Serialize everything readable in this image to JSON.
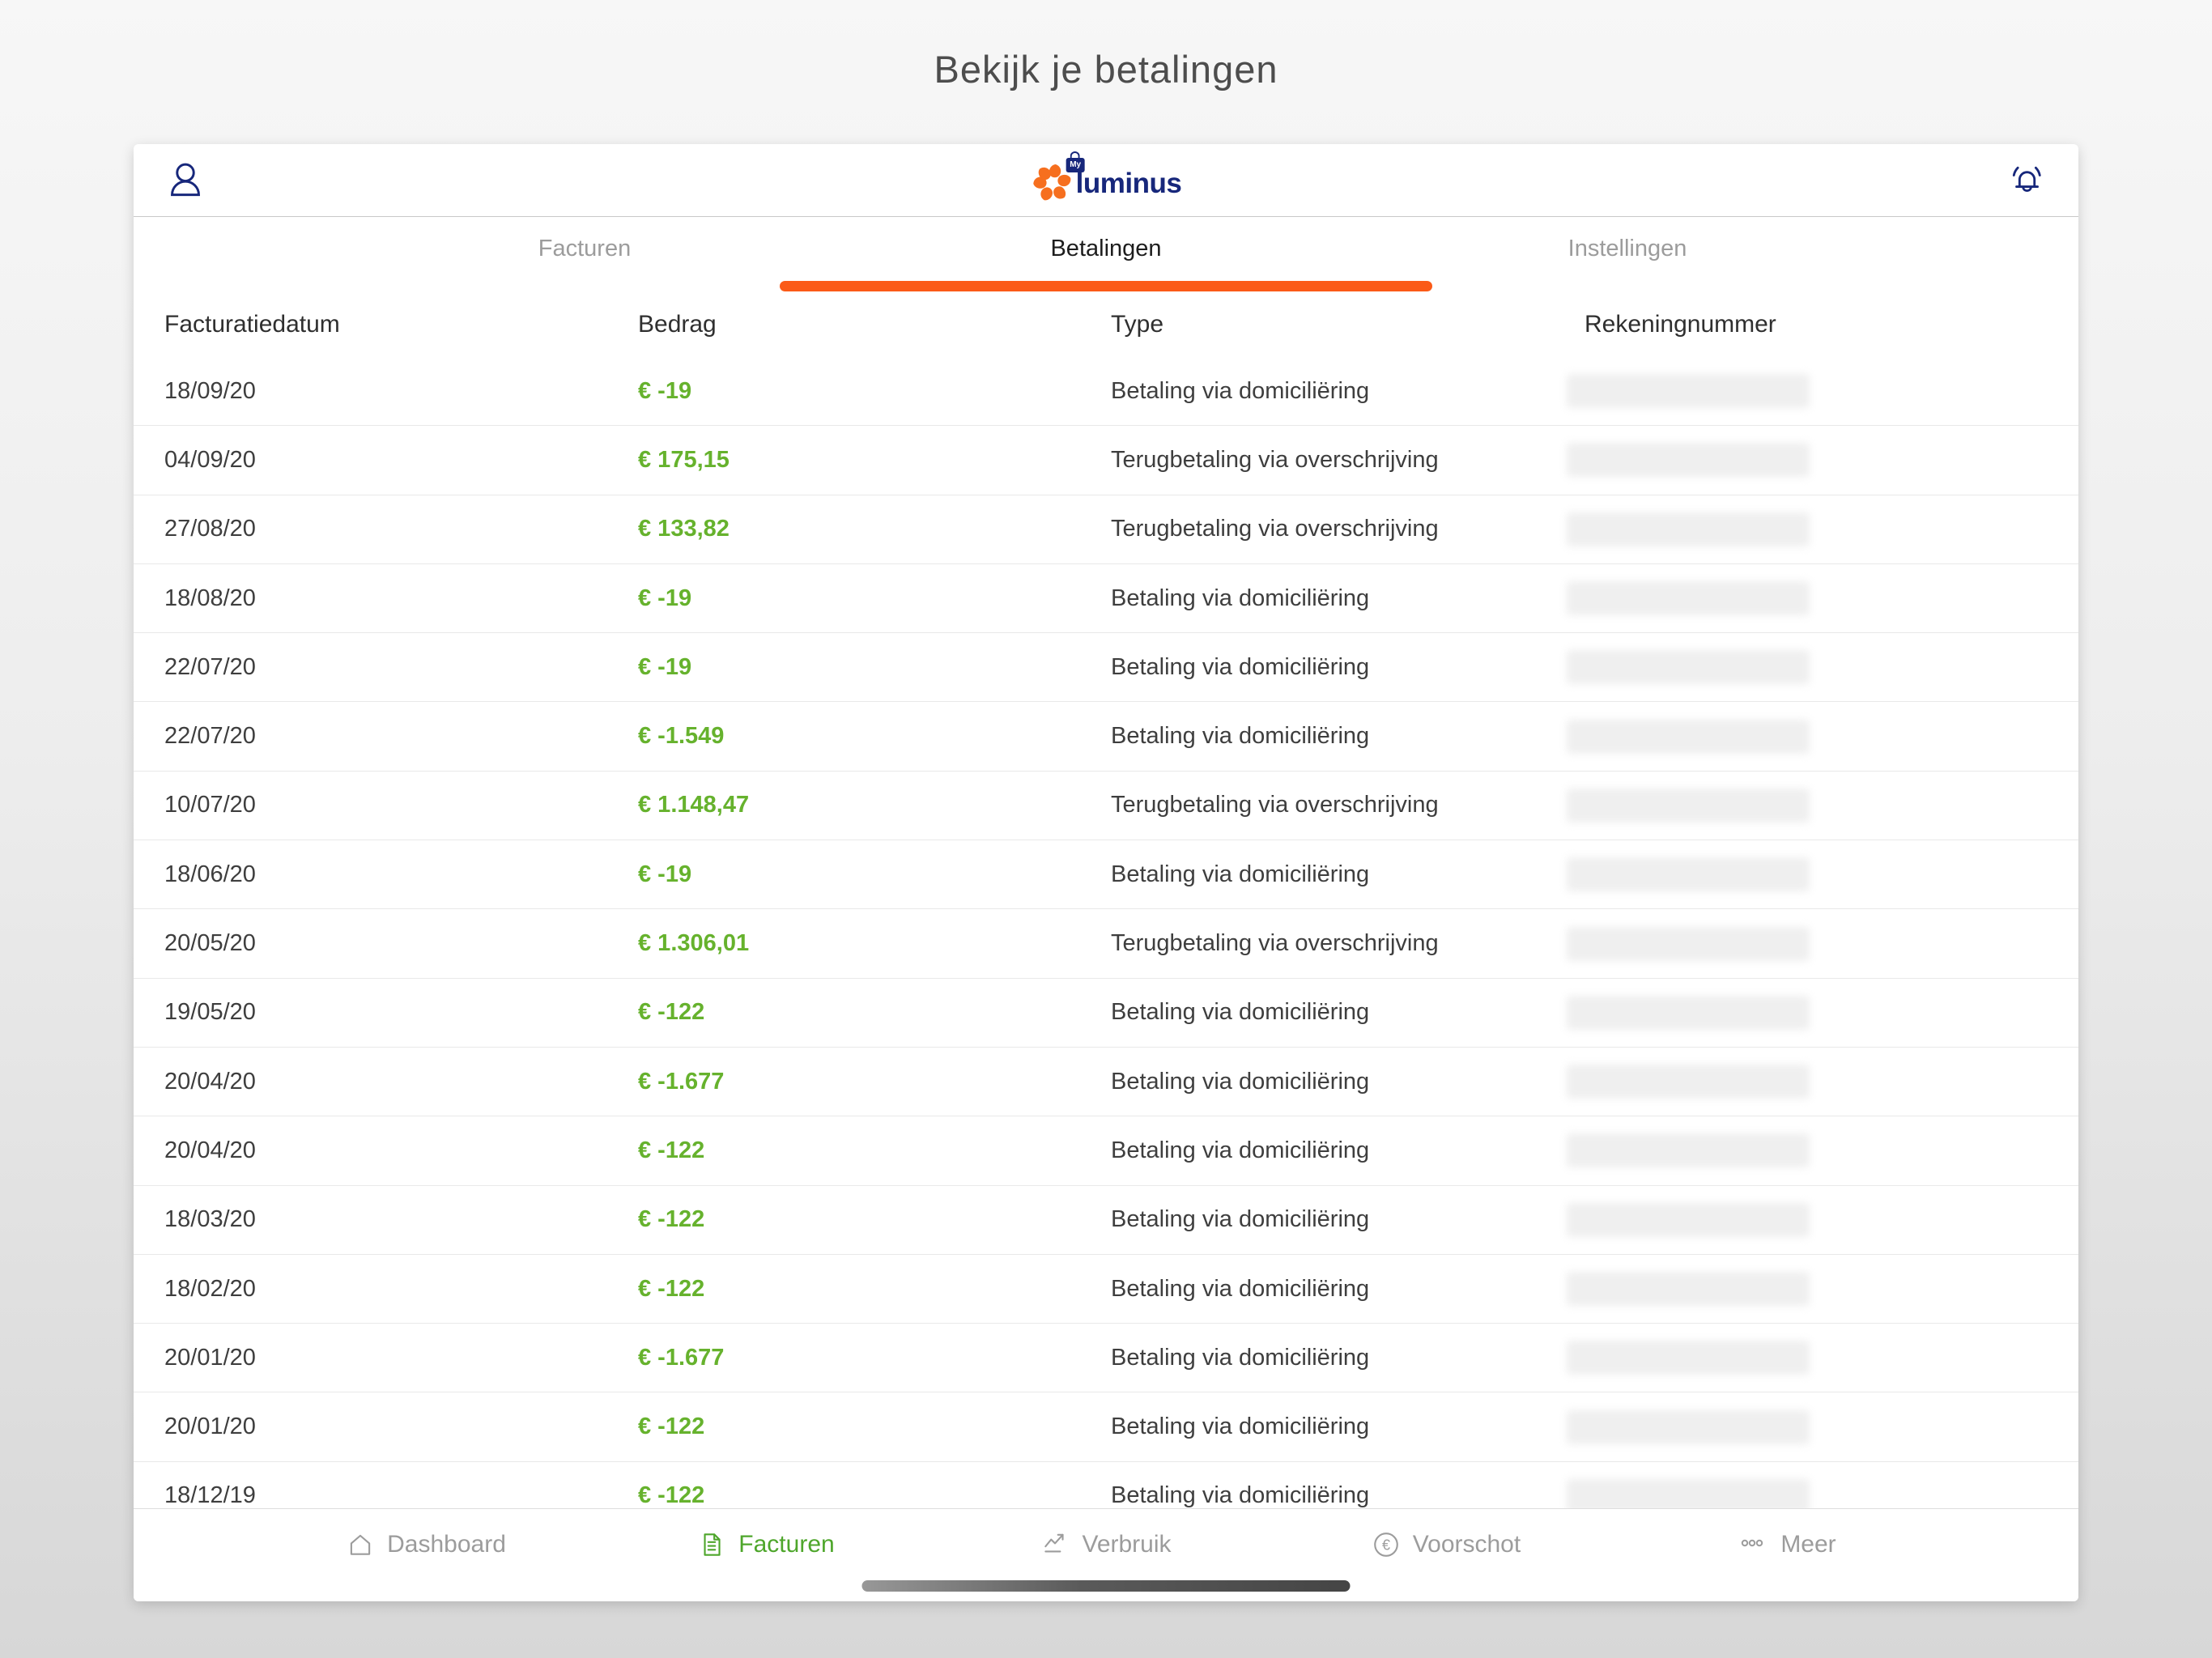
{
  "page": {
    "title": "Bekijk je betalingen"
  },
  "header": {
    "logo_text": "luminus",
    "logo_badge": "My"
  },
  "tabs": [
    {
      "label": "Facturen",
      "active": false
    },
    {
      "label": "Betalingen",
      "active": true
    },
    {
      "label": "Instellingen",
      "active": false
    }
  ],
  "table": {
    "columns": [
      "Facturatiedatum",
      "Bedrag",
      "Type",
      "Rekeningnummer"
    ],
    "rows": [
      {
        "date": "18/09/20",
        "amount": "€ -19",
        "type": "Betaling via domiciliëring"
      },
      {
        "date": "04/09/20",
        "amount": "€ 175,15",
        "type": "Terugbetaling via overschrijving"
      },
      {
        "date": "27/08/20",
        "amount": "€ 133,82",
        "type": "Terugbetaling via overschrijving"
      },
      {
        "date": "18/08/20",
        "amount": "€ -19",
        "type": "Betaling via domiciliëring"
      },
      {
        "date": "22/07/20",
        "amount": "€ -19",
        "type": "Betaling via domiciliëring"
      },
      {
        "date": "22/07/20",
        "amount": "€ -1.549",
        "type": "Betaling via domiciliëring"
      },
      {
        "date": "10/07/20",
        "amount": "€ 1.148,47",
        "type": "Terugbetaling via overschrijving"
      },
      {
        "date": "18/06/20",
        "amount": "€ -19",
        "type": "Betaling via domiciliëring"
      },
      {
        "date": "20/05/20",
        "amount": "€ 1.306,01",
        "type": "Terugbetaling via overschrijving"
      },
      {
        "date": "19/05/20",
        "amount": "€ -122",
        "type": "Betaling via domiciliëring"
      },
      {
        "date": "20/04/20",
        "amount": "€ -1.677",
        "type": "Betaling via domiciliëring"
      },
      {
        "date": "20/04/20",
        "amount": "€ -122",
        "type": "Betaling via domiciliëring"
      },
      {
        "date": "18/03/20",
        "amount": "€ -122",
        "type": "Betaling via domiciliëring"
      },
      {
        "date": "18/02/20",
        "amount": "€ -122",
        "type": "Betaling via domiciliëring"
      },
      {
        "date": "20/01/20",
        "amount": "€ -1.677",
        "type": "Betaling via domiciliëring"
      },
      {
        "date": "20/01/20",
        "amount": "€ -122",
        "type": "Betaling via domiciliëring"
      },
      {
        "date": "18/12/19",
        "amount": "€ -122",
        "type": "Betaling via domiciliëring"
      }
    ]
  },
  "bottom_nav": {
    "items": [
      {
        "label": "Dashboard",
        "active": false
      },
      {
        "label": "Facturen",
        "active": true
      },
      {
        "label": "Verbruik",
        "active": false
      },
      {
        "label": "Voorschot",
        "active": false
      },
      {
        "label": "Meer",
        "active": false
      }
    ]
  },
  "colors": {
    "accent": "#fb5a17",
    "green": "#66b22d",
    "nav_green": "#4ea62b",
    "navy": "#17277b",
    "gray_text": "#9c9c9c",
    "dark_text": "#3e3e3e"
  }
}
